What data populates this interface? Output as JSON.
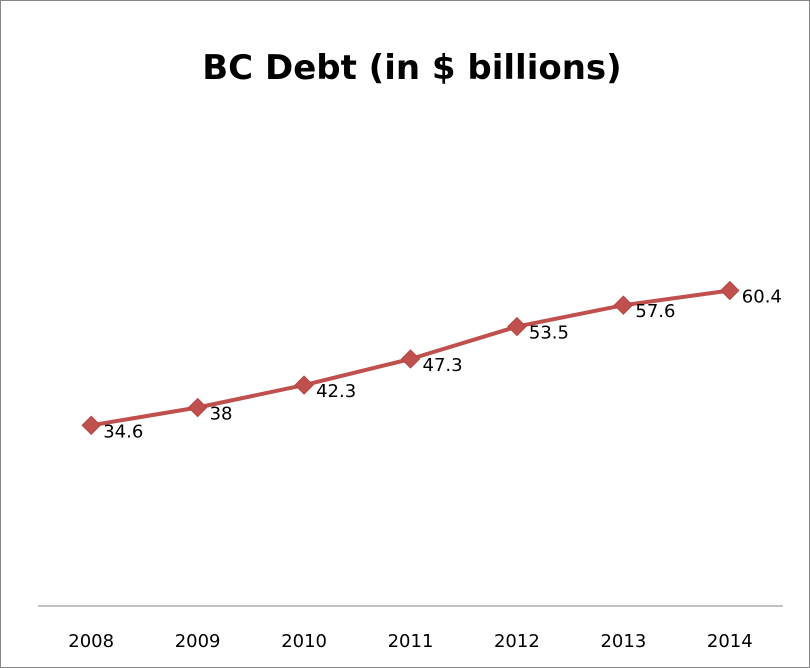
{
  "chart_data": {
    "type": "line",
    "title": "BC Debt (in $ billions)",
    "xlabel": "",
    "ylabel": "",
    "categories": [
      "2008",
      "2009",
      "2010",
      "2011",
      "2012",
      "2013",
      "2014"
    ],
    "series": [
      {
        "values": [
          34.6,
          38,
          42.3,
          47.3,
          53.5,
          57.6,
          60.4
        ],
        "color": "#c0504d"
      }
    ],
    "data_labels": [
      "34.6",
      "38",
      "42.3",
      "47.3",
      "53.5",
      "57.6",
      "60.4"
    ],
    "ylim": [
      0,
      70
    ],
    "y_axis_visible": false,
    "grid": false,
    "legend": "none",
    "marker": "diamond",
    "axis_color": "#868686"
  }
}
